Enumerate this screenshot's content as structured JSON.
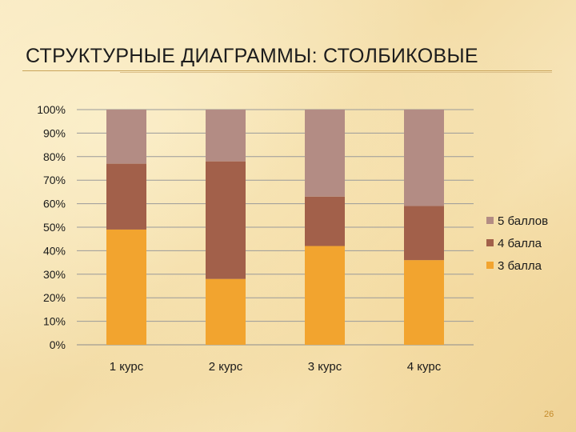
{
  "slide": {
    "title": "СТРУКТУРНЫЕ ДИАГРАММЫ: СТОЛБИКОВЫЕ",
    "page_number": "26"
  },
  "chart_data": {
    "type": "bar",
    "stacked": true,
    "percent": true,
    "categories": [
      "1 курс",
      "2 курс",
      "3 курс",
      "4 курс"
    ],
    "series": [
      {
        "name": "3 балла",
        "color": "#f2a42f",
        "values": [
          49,
          28,
          42,
          36
        ]
      },
      {
        "name": "4 балла",
        "color": "#a2604a",
        "values": [
          28,
          50,
          21,
          23
        ]
      },
      {
        "name": "5 баллов",
        "color": "#b38c84",
        "values": [
          23,
          22,
          37,
          41
        ]
      }
    ],
    "ylim": [
      0,
      100
    ],
    "y_ticks": [
      "0%",
      "10%",
      "20%",
      "30%",
      "40%",
      "50%",
      "60%",
      "70%",
      "80%",
      "90%",
      "100%"
    ],
    "grid": true,
    "legend_position": "right",
    "legend_order": [
      "5 баллов",
      "4 балла",
      "3 балла"
    ]
  }
}
